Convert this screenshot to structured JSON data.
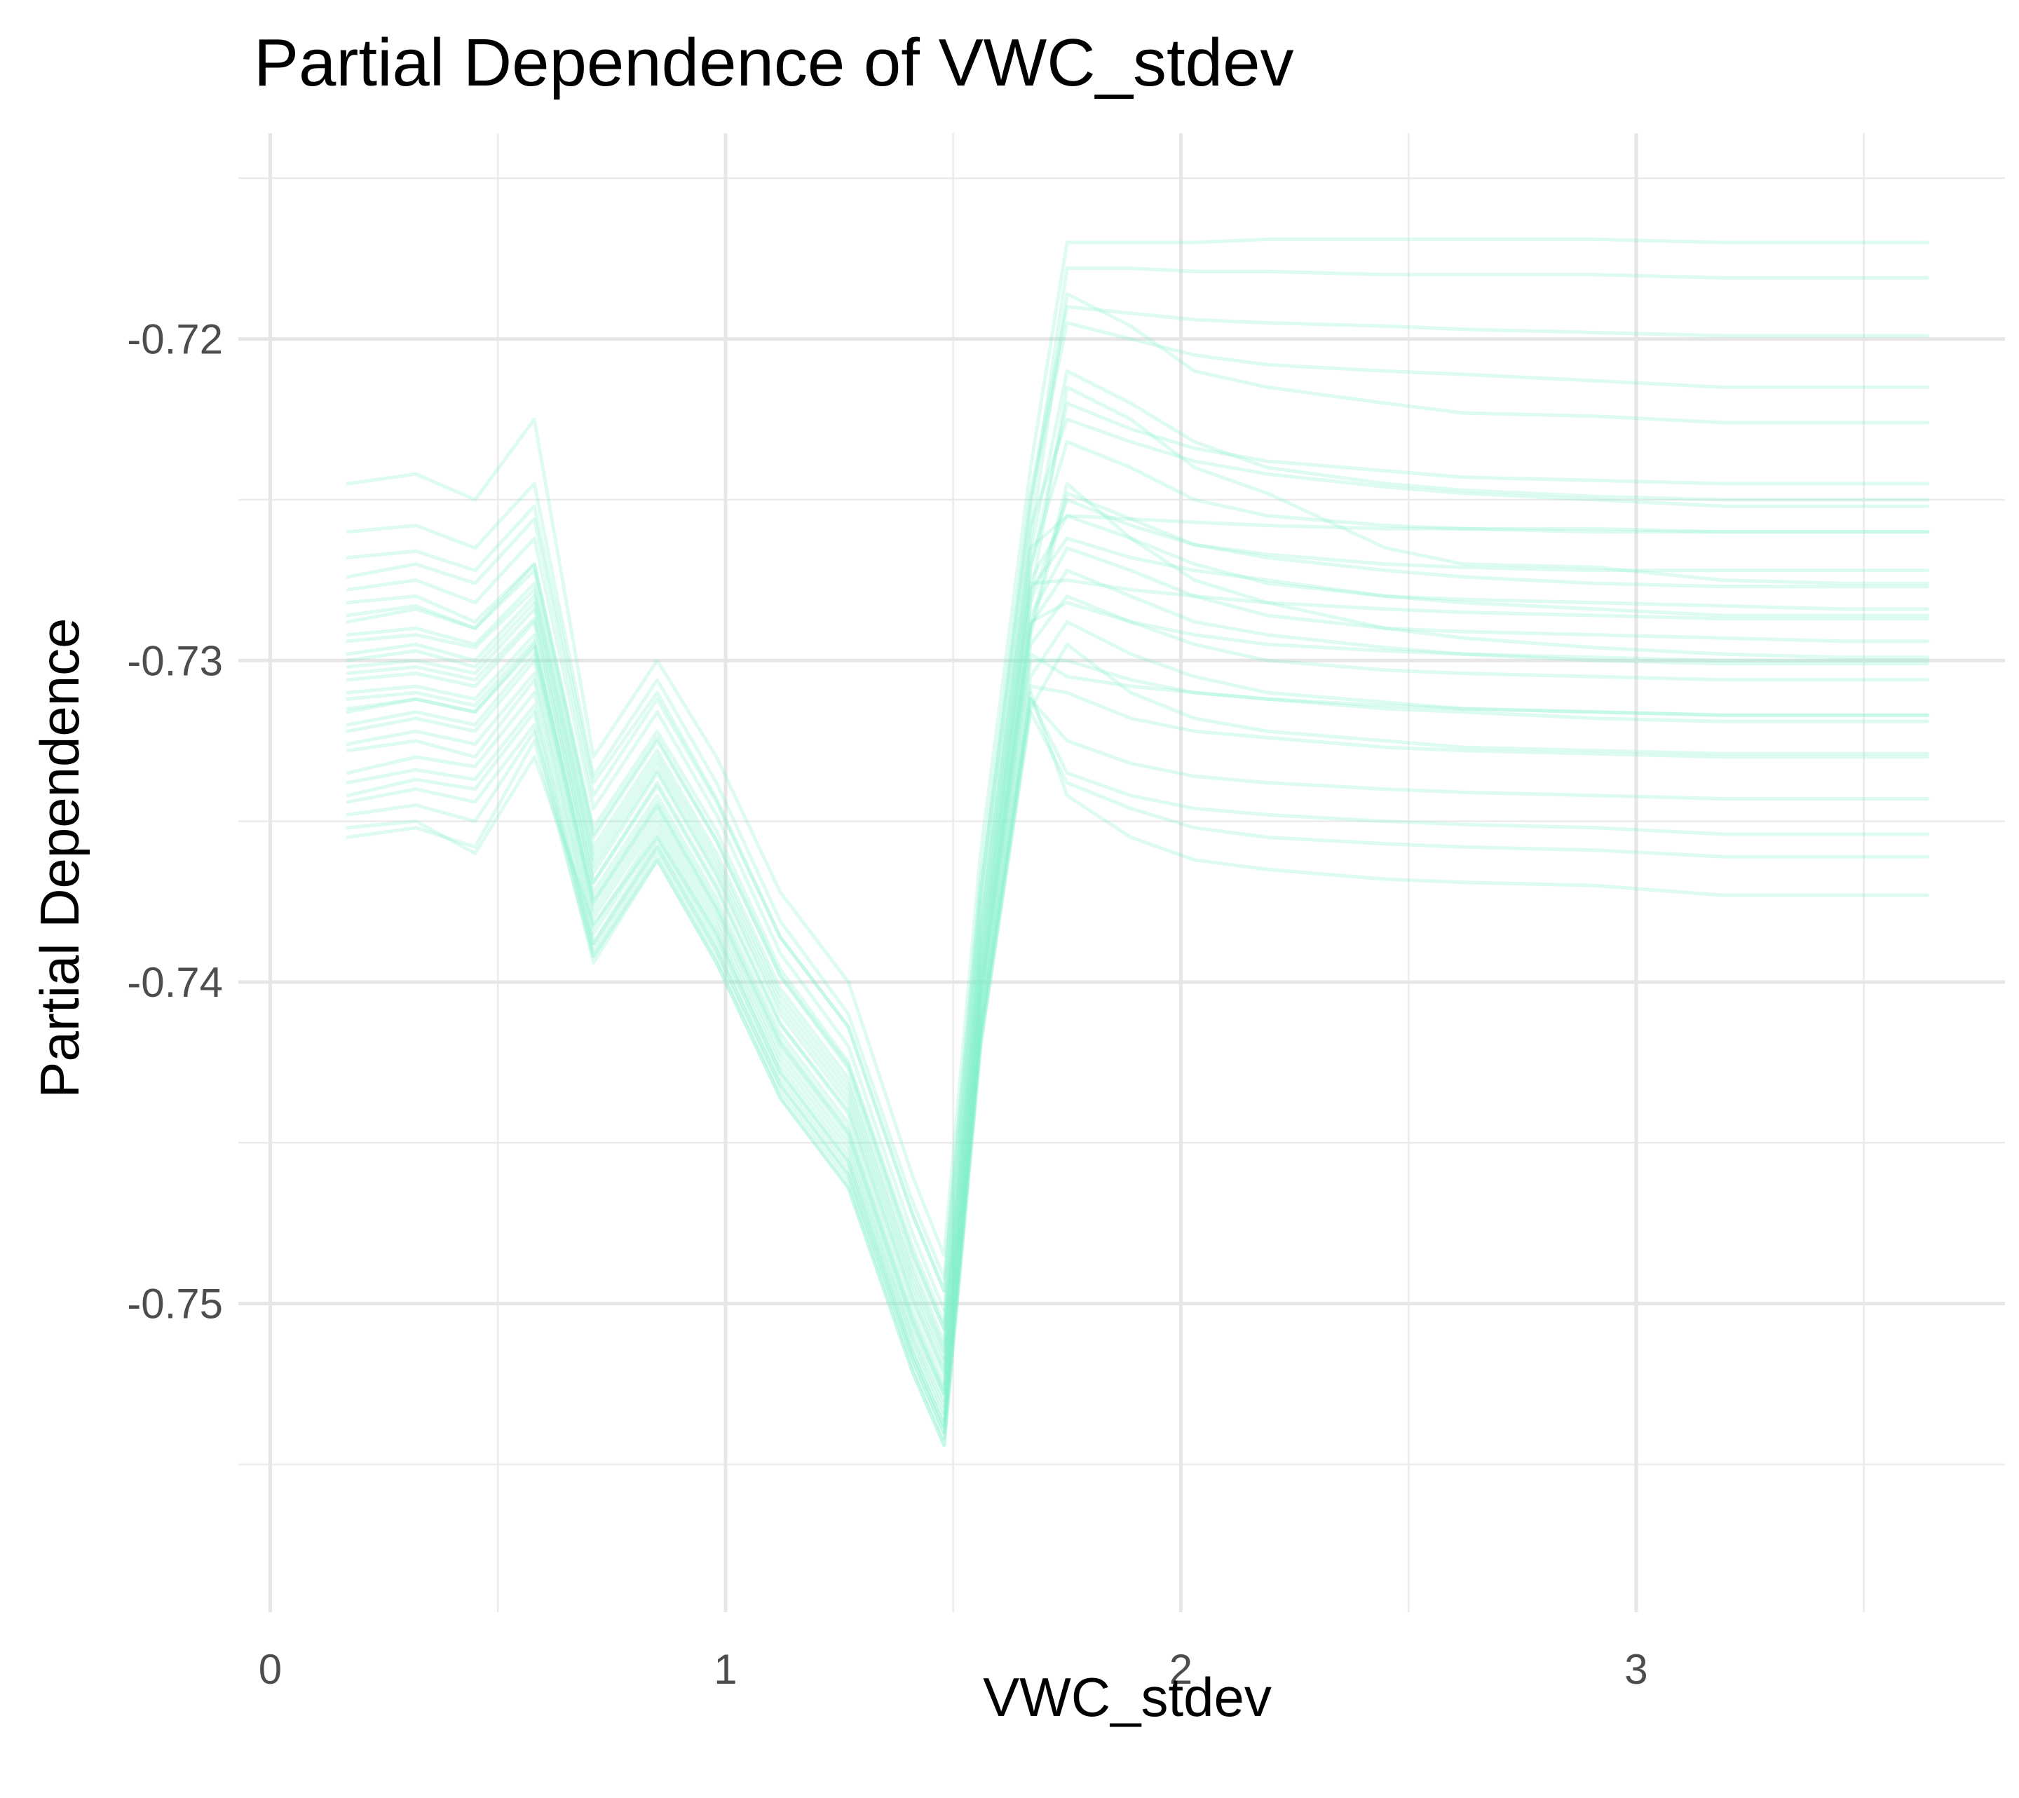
{
  "chart_data": {
    "type": "line",
    "title": "Partial Dependence of VWC_stdev",
    "xlabel": "VWC_stdev",
    "ylabel": "Partial Dependence",
    "xlim": [
      -0.07,
      3.81
    ],
    "ylim": [
      -0.7596,
      -0.7136
    ],
    "x_ticks": [
      0,
      1,
      2,
      3
    ],
    "x_tick_labels": [
      "0",
      "1",
      "2",
      "3"
    ],
    "y_ticks": [
      -0.75,
      -0.74,
      -0.73,
      -0.72
    ],
    "y_tick_labels": [
      "-0.75",
      "-0.74",
      "-0.73",
      "-0.72"
    ],
    "grid": true,
    "legend": "none",
    "line_color": "#7cefc6",
    "line_opacity": 0.25,
    "x": [
      0.17,
      0.32,
      0.45,
      0.58,
      0.71,
      0.85,
      0.98,
      1.12,
      1.27,
      1.41,
      1.48,
      1.56,
      1.67,
      1.75,
      1.89,
      2.03,
      2.19,
      2.45,
      2.62,
      2.91,
      3.19,
      3.45,
      3.64
    ],
    "series": [
      {
        "values": [
          -0.7304,
          -0.7302,
          -0.7306,
          -0.7287,
          -0.7369,
          -0.7338,
          -0.737,
          -0.7413,
          -0.744,
          -0.7498,
          -0.7521,
          -0.7398,
          -0.7281,
          -0.7215,
          -0.7225,
          -0.724,
          -0.7248,
          -0.7265,
          -0.727,
          -0.7271,
          -0.7275,
          -0.7276,
          -0.7276
        ]
      },
      {
        "values": [
          -0.7282,
          -0.728,
          -0.7288,
          -0.727,
          -0.7352,
          -0.7322,
          -0.7353,
          -0.7396,
          -0.7425,
          -0.7482,
          -0.7506,
          -0.738,
          -0.7262,
          -0.7186,
          -0.7196,
          -0.721,
          -0.7215,
          -0.722,
          -0.7223,
          -0.7224,
          -0.7226,
          -0.7226,
          -0.7226
        ]
      },
      {
        "values": [
          -0.7316,
          -0.7312,
          -0.7316,
          -0.7295,
          -0.7376,
          -0.7346,
          -0.7378,
          -0.742,
          -0.7448,
          -0.7506,
          -0.7528,
          -0.7405,
          -0.729,
          -0.7245,
          -0.7262,
          -0.7275,
          -0.7282,
          -0.729,
          -0.7293,
          -0.7296,
          -0.7298,
          -0.7299,
          -0.7299
        ]
      },
      {
        "values": [
          -0.7342,
          -0.7337,
          -0.734,
          -0.7316,
          -0.7392,
          -0.736,
          -0.7392,
          -0.7434,
          -0.7462,
          -0.7519,
          -0.7542,
          -0.7418,
          -0.7315,
          -0.7295,
          -0.731,
          -0.7318,
          -0.7322,
          -0.7325,
          -0.7327,
          -0.7328,
          -0.7329,
          -0.7329,
          -0.7329
        ]
      },
      {
        "values": [
          -0.7352,
          -0.735,
          -0.736,
          -0.733,
          -0.7382,
          -0.7355,
          -0.7385,
          -0.7428,
          -0.7456,
          -0.7515,
          -0.7538,
          -0.7415,
          -0.731,
          -0.7342,
          -0.7355,
          -0.7362,
          -0.7365,
          -0.7368,
          -0.7369,
          -0.737,
          -0.7373,
          -0.7373,
          -0.7373
        ]
      },
      {
        "values": [
          -0.7245,
          -0.7242,
          -0.725,
          -0.7225,
          -0.733,
          -0.73,
          -0.733,
          -0.7372,
          -0.74,
          -0.746,
          -0.7485,
          -0.736,
          -0.724,
          -0.717,
          -0.717,
          -0.717,
          -0.7169,
          -0.7169,
          -0.7169,
          -0.7169,
          -0.717,
          -0.717,
          -0.717
        ]
      },
      {
        "values": [
          -0.7268,
          -0.7266,
          -0.7272,
          -0.7252,
          -0.7338,
          -0.731,
          -0.7343,
          -0.7386,
          -0.7414,
          -0.7472,
          -0.7496,
          -0.7372,
          -0.725,
          -0.7195,
          -0.72,
          -0.7205,
          -0.7208,
          -0.721,
          -0.7211,
          -0.7213,
          -0.7215,
          -0.7215,
          -0.7215
        ]
      },
      {
        "values": [
          -0.7292,
          -0.729,
          -0.7295,
          -0.7276,
          -0.7358,
          -0.7328,
          -0.736,
          -0.7402,
          -0.743,
          -0.7488,
          -0.7512,
          -0.7388,
          -0.727,
          -0.7232,
          -0.724,
          -0.725,
          -0.7255,
          -0.7258,
          -0.7259,
          -0.726,
          -0.726,
          -0.726,
          -0.726
        ]
      },
      {
        "values": [
          -0.7298,
          -0.7295,
          -0.73,
          -0.728,
          -0.7362,
          -0.7332,
          -0.7364,
          -0.7406,
          -0.7434,
          -0.7492,
          -0.7515,
          -0.7392,
          -0.7275,
          -0.7255,
          -0.7262,
          -0.727,
          -0.7276,
          -0.728,
          -0.7281,
          -0.7282,
          -0.7283,
          -0.7284,
          -0.7284
        ]
      },
      {
        "values": [
          -0.731,
          -0.7308,
          -0.7312,
          -0.7292,
          -0.7372,
          -0.7342,
          -0.7374,
          -0.7416,
          -0.7444,
          -0.7502,
          -0.7525,
          -0.7402,
          -0.7286,
          -0.7265,
          -0.7272,
          -0.728,
          -0.7286,
          -0.729,
          -0.7291,
          -0.7292,
          -0.7293,
          -0.7294,
          -0.7294
        ]
      },
      {
        "values": [
          -0.7322,
          -0.7318,
          -0.7322,
          -0.73,
          -0.738,
          -0.735,
          -0.7382,
          -0.7424,
          -0.7452,
          -0.751,
          -0.7532,
          -0.7409,
          -0.7295,
          -0.728,
          -0.7288,
          -0.7295,
          -0.73,
          -0.7303,
          -0.7304,
          -0.7305,
          -0.7306,
          -0.7306,
          -0.7306
        ]
      },
      {
        "values": [
          -0.7335,
          -0.733,
          -0.7333,
          -0.731,
          -0.7388,
          -0.7356,
          -0.7388,
          -0.743,
          -0.7458,
          -0.7515,
          -0.7538,
          -0.7414,
          -0.7305,
          -0.7288,
          -0.7298,
          -0.7305,
          -0.731,
          -0.7313,
          -0.7315,
          -0.7316,
          -0.7317,
          -0.7317,
          -0.7317
        ]
      },
      {
        "values": [
          -0.7288,
          -0.7284,
          -0.729,
          -0.7272,
          -0.7355,
          -0.7325,
          -0.7356,
          -0.7398,
          -0.7427,
          -0.7485,
          -0.7508,
          -0.7384,
          -0.7266,
          -0.721,
          -0.722,
          -0.7232,
          -0.724,
          -0.7245,
          -0.7247,
          -0.7249,
          -0.725,
          -0.725,
          -0.725
        ]
      },
      {
        "values": [
          -0.7278,
          -0.7275,
          -0.7282,
          -0.7262,
          -0.7346,
          -0.7316,
          -0.7348,
          -0.7391,
          -0.742,
          -0.7478,
          -0.7502,
          -0.7377,
          -0.7258,
          -0.7225,
          -0.7232,
          -0.7238,
          -0.7242,
          -0.7246,
          -0.7248,
          -0.725,
          -0.7252,
          -0.7252,
          -0.7252
        ]
      },
      {
        "values": [
          -0.7302,
          -0.73,
          -0.7304,
          -0.7284,
          -0.7366,
          -0.7335,
          -0.7367,
          -0.741,
          -0.7438,
          -0.7496,
          -0.7519,
          -0.7396,
          -0.7278,
          -0.7262,
          -0.7268,
          -0.7272,
          -0.7275,
          -0.728,
          -0.7282,
          -0.7284,
          -0.7286,
          -0.7286,
          -0.7286
        ]
      },
      {
        "values": [
          -0.7315,
          -0.7312,
          -0.7316,
          -0.7296,
          -0.7375,
          -0.7345,
          -0.7377,
          -0.7419,
          -0.7447,
          -0.7505,
          -0.7528,
          -0.7404,
          -0.7289,
          -0.7272,
          -0.728,
          -0.7288,
          -0.7292,
          -0.7296,
          -0.7298,
          -0.73,
          -0.7301,
          -0.7301,
          -0.7301
        ]
      },
      {
        "values": [
          -0.7328,
          -0.7325,
          -0.733,
          -0.7306,
          -0.7385,
          -0.7354,
          -0.7386,
          -0.7428,
          -0.7456,
          -0.7513,
          -0.7536,
          -0.7412,
          -0.73,
          -0.73,
          -0.7306,
          -0.731,
          -0.7312,
          -0.7315,
          -0.7316,
          -0.7318,
          -0.7319,
          -0.7319,
          -0.7319
        ]
      },
      {
        "values": [
          -0.7348,
          -0.7345,
          -0.735,
          -0.7322,
          -0.7388,
          -0.7358,
          -0.739,
          -0.7432,
          -0.746,
          -0.7517,
          -0.754,
          -0.7416,
          -0.7312,
          -0.7335,
          -0.7342,
          -0.7346,
          -0.7348,
          -0.735,
          -0.7351,
          -0.7352,
          -0.7354,
          -0.7354,
          -0.7354
        ]
      },
      {
        "values": [
          -0.726,
          -0.7258,
          -0.7265,
          -0.7245,
          -0.7336,
          -0.7306,
          -0.7338,
          -0.7381,
          -0.741,
          -0.7468,
          -0.7492,
          -0.7368,
          -0.7248,
          -0.719,
          -0.7192,
          -0.7194,
          -0.7195,
          -0.7196,
          -0.7197,
          -0.7198,
          -0.7199,
          -0.7199,
          -0.7199
        ]
      },
      {
        "values": [
          -0.7294,
          -0.7292,
          -0.7296,
          -0.7278,
          -0.736,
          -0.733,
          -0.7362,
          -0.7404,
          -0.7432,
          -0.749,
          -0.7514,
          -0.739,
          -0.7272,
          -0.722,
          -0.7228,
          -0.7234,
          -0.7238,
          -0.7241,
          -0.7243,
          -0.7244,
          -0.7245,
          -0.7245,
          -0.7245
        ]
      },
      {
        "values": [
          -0.7306,
          -0.7304,
          -0.7308,
          -0.7288,
          -0.7369,
          -0.7339,
          -0.7371,
          -0.7413,
          -0.7441,
          -0.7499,
          -0.7522,
          -0.7399,
          -0.7282,
          -0.725,
          -0.7258,
          -0.7264,
          -0.7267,
          -0.727,
          -0.7271,
          -0.7272,
          -0.7272,
          -0.7272,
          -0.7272
        ]
      },
      {
        "values": [
          -0.732,
          -0.7316,
          -0.732,
          -0.7298,
          -0.7378,
          -0.7348,
          -0.738,
          -0.7422,
          -0.745,
          -0.7508,
          -0.753,
          -0.7407,
          -0.7292,
          -0.7248,
          -0.7256,
          -0.7264,
          -0.7268,
          -0.7272,
          -0.7274,
          -0.7276,
          -0.7277,
          -0.7277,
          -0.7277
        ]
      },
      {
        "values": [
          -0.7338,
          -0.7334,
          -0.7337,
          -0.7314,
          -0.739,
          -0.7358,
          -0.739,
          -0.7432,
          -0.746,
          -0.7517,
          -0.754,
          -0.7416,
          -0.7308,
          -0.731,
          -0.7318,
          -0.7322,
          -0.7324,
          -0.7327,
          -0.7328,
          -0.7329,
          -0.733,
          -0.733,
          -0.733
        ]
      },
      {
        "values": [
          -0.7355,
          -0.7352,
          -0.7358,
          -0.7325,
          -0.7392,
          -0.7362,
          -0.7394,
          -0.7436,
          -0.7464,
          -0.7521,
          -0.7544,
          -0.742,
          -0.7316,
          -0.7338,
          -0.7346,
          -0.7352,
          -0.7355,
          -0.7357,
          -0.7358,
          -0.7359,
          -0.7361,
          -0.7361,
          -0.7361
        ]
      },
      {
        "values": [
          -0.7286,
          -0.7283,
          -0.729,
          -0.727,
          -0.7354,
          -0.7324,
          -0.7356,
          -0.7398,
          -0.7426,
          -0.7484,
          -0.7508,
          -0.7384,
          -0.7265,
          -0.7255,
          -0.7256,
          -0.7257,
          -0.7258,
          -0.7259,
          -0.7259,
          -0.7259,
          -0.726,
          -0.726,
          -0.726
        ]
      },
      {
        "values": [
          -0.73,
          -0.7297,
          -0.7302,
          -0.7282,
          -0.7364,
          -0.7334,
          -0.7366,
          -0.7408,
          -0.7436,
          -0.7494,
          -0.7517,
          -0.7394,
          -0.7276,
          -0.7275,
          -0.7278,
          -0.728,
          -0.7282,
          -0.7284,
          -0.7285,
          -0.7286,
          -0.7287,
          -0.7287,
          -0.7287
        ]
      },
      {
        "values": [
          -0.7312,
          -0.731,
          -0.7314,
          -0.7294,
          -0.7374,
          -0.7344,
          -0.7376,
          -0.7418,
          -0.7446,
          -0.7504,
          -0.7527,
          -0.7403,
          -0.7288,
          -0.7282,
          -0.7288,
          -0.7292,
          -0.7295,
          -0.7297,
          -0.7298,
          -0.7299,
          -0.73,
          -0.73,
          -0.73
        ]
      },
      {
        "values": [
          -0.7274,
          -0.727,
          -0.7276,
          -0.7256,
          -0.7342,
          -0.7312,
          -0.7344,
          -0.7386,
          -0.7414,
          -0.7472,
          -0.7496,
          -0.7372,
          -0.7254,
          -0.7178,
          -0.7178,
          -0.7179,
          -0.7179,
          -0.718,
          -0.718,
          -0.718,
          -0.7181,
          -0.7181,
          -0.7181
        ]
      },
      {
        "values": [
          -0.7326,
          -0.7322,
          -0.7326,
          -0.7304,
          -0.7383,
          -0.7352,
          -0.7384,
          -0.7426,
          -0.7454,
          -0.7511,
          -0.7534,
          -0.741,
          -0.7298,
          -0.7305,
          -0.7308,
          -0.731,
          -0.7312,
          -0.7314,
          -0.7315,
          -0.7316,
          -0.7317,
          -0.7317,
          -0.7317
        ]
      },
      {
        "values": [
          -0.7344,
          -0.734,
          -0.7344,
          -0.732,
          -0.7394,
          -0.7362,
          -0.7394,
          -0.7436,
          -0.7464,
          -0.7521,
          -0.7544,
          -0.742,
          -0.7312,
          -0.7325,
          -0.7332,
          -0.7336,
          -0.7338,
          -0.734,
          -0.7341,
          -0.7342,
          -0.7343,
          -0.7343,
          -0.7343
        ]
      }
    ]
  }
}
